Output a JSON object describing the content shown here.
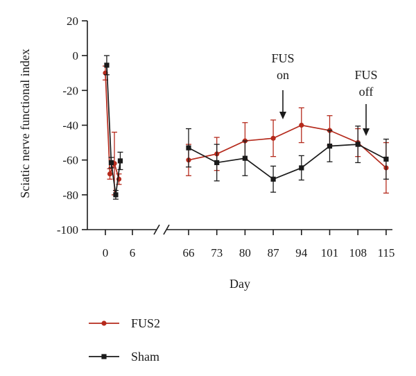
{
  "chart_data": {
    "type": "line",
    "xlabel": "Day",
    "ylabel": "Sciatic nerve functional index",
    "ylim": [
      -100,
      20
    ],
    "yticks": [
      "20",
      "0",
      "-20",
      "-40",
      "-60",
      "-80",
      "-100"
    ],
    "xticks": [
      "0",
      "6",
      "66",
      "73",
      "80",
      "87",
      "94",
      "101",
      "108",
      "115"
    ],
    "axis_break": true,
    "annotations": [
      {
        "lines": [
          "FUS",
          "on"
        ]
      },
      {
        "lines": [
          "FUS",
          "off"
        ]
      }
    ],
    "series": [
      {
        "name": "FUS2",
        "color": "#b52a1c",
        "marker": "circle",
        "early": {
          "x": [
            0,
            1,
            2,
            3
          ],
          "y": [
            -10,
            -68,
            -62,
            -71
          ],
          "err": [
            4,
            3,
            18,
            3
          ]
        },
        "late": {
          "x": [
            66,
            73,
            80,
            87,
            94,
            101,
            108,
            115
          ],
          "y": [
            -60,
            -56.5,
            -49,
            -47.5,
            -40,
            -43,
            -50,
            -64.5
          ],
          "err": [
            9,
            9.5,
            10.5,
            10.5,
            10,
            8.5,
            8,
            14.5
          ]
        }
      },
      {
        "name": "Sham",
        "color": "#1a1a1a",
        "marker": "square",
        "early": {
          "x": [
            0.3,
            1.3,
            2.3,
            3.3
          ],
          "y": [
            -5.5,
            -61.5,
            -80,
            -60.5
          ],
          "err": [
            5.5,
            3,
            2.5,
            5
          ]
        },
        "late": {
          "x": [
            66,
            73,
            80,
            87,
            94,
            101,
            108,
            115
          ],
          "y": [
            -53,
            -61.5,
            -59,
            -71,
            -64.5,
            -52,
            -51,
            -59.5
          ],
          "err": [
            11,
            10.5,
            10,
            7.5,
            7,
            9,
            10.5,
            11.5
          ]
        }
      }
    ]
  }
}
